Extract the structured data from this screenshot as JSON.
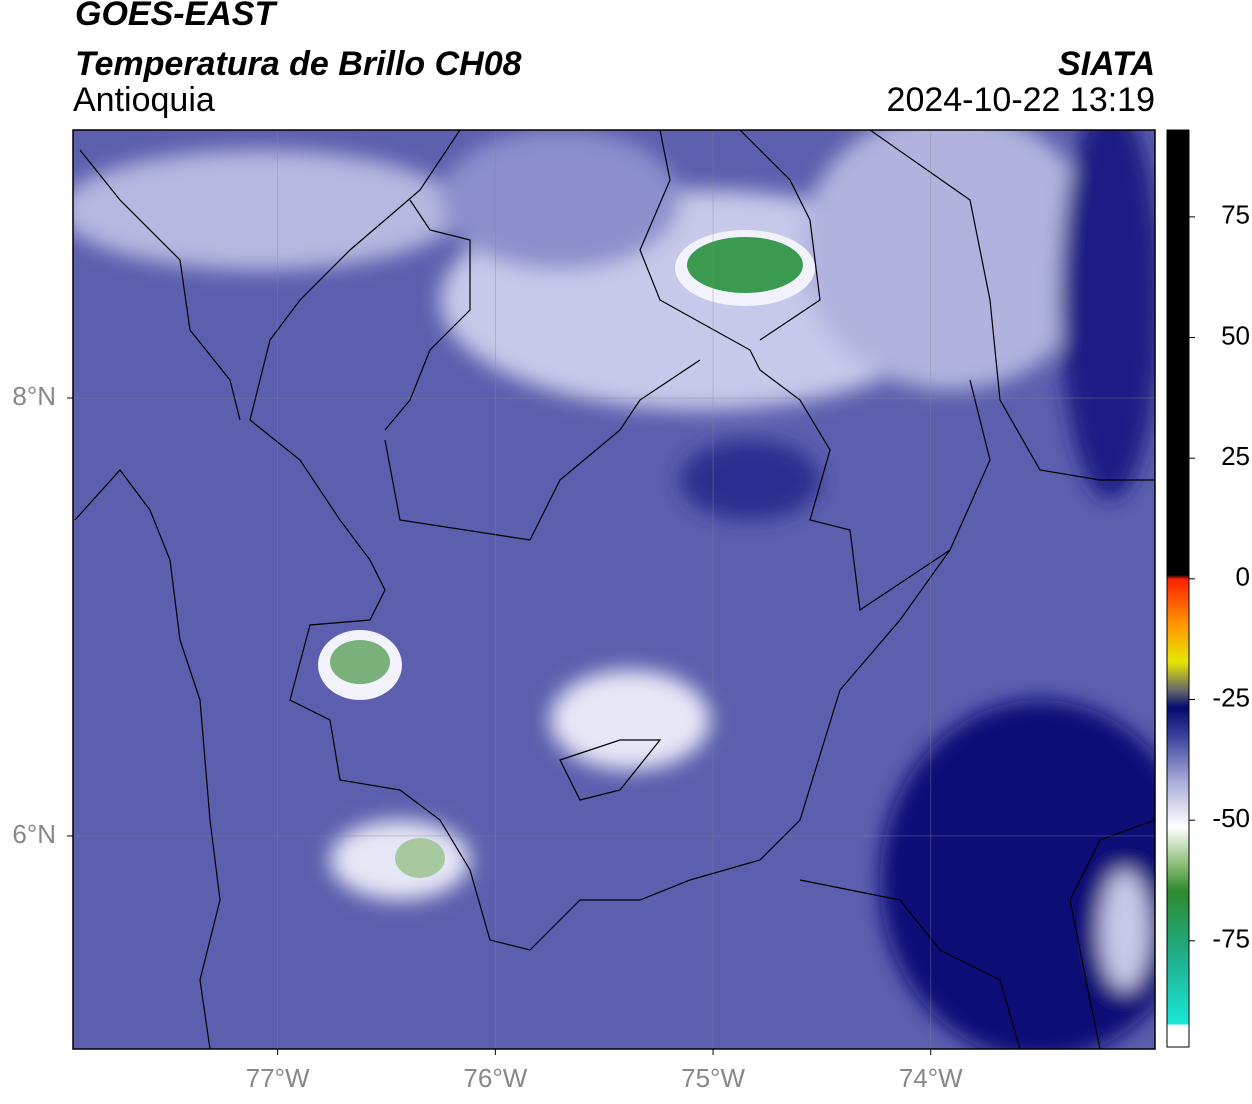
{
  "header": {
    "title": "GOES-EAST",
    "subtitle": "Temperatura de Brillo CH08",
    "region": "Antioquia",
    "source": "SIATA",
    "datetime": "2024-10-22 13:19"
  },
  "map": {
    "xlim": [
      -77.94,
      -72.97
    ],
    "ylim": [
      5.027,
      9.224
    ],
    "xticks": [
      {
        "value": -77,
        "label": "77°W"
      },
      {
        "value": -76,
        "label": "76°W"
      },
      {
        "value": -75,
        "label": "75°W"
      },
      {
        "value": -74,
        "label": "74°W"
      }
    ],
    "yticks": [
      {
        "value": 8,
        "label": "8°N"
      },
      {
        "value": 6,
        "label": "6°N"
      }
    ],
    "grid": true
  },
  "colorbar": {
    "lim": [
      -97,
      93
    ],
    "ticks": [
      75,
      50,
      25,
      0,
      -25,
      -50,
      -75
    ]
  }
}
